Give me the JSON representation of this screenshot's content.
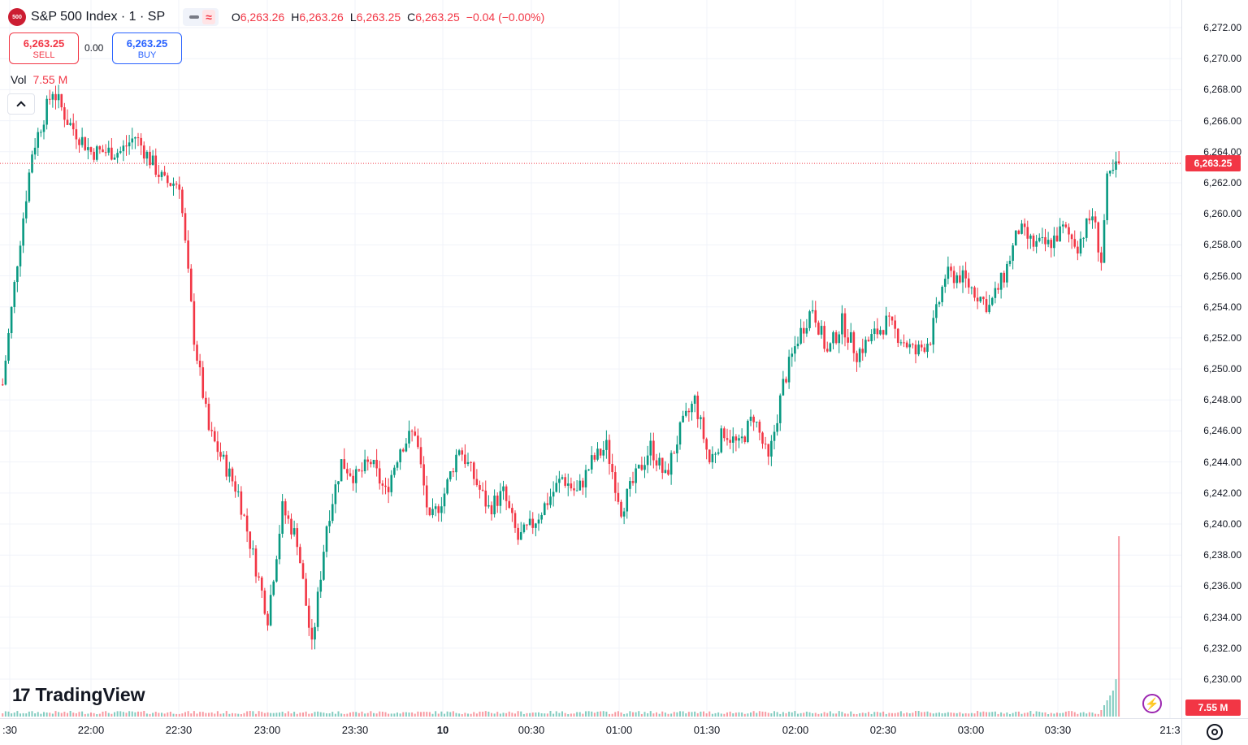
{
  "legend": {
    "logo_text": "500",
    "symbol_title": "S&P 500 Index · 1 · SP",
    "open_label": "O",
    "open_value": "6,263.26",
    "high_label": "H",
    "high_value": "6,263.26",
    "low_label": "L",
    "low_value": "6,263.25",
    "close_label": "C",
    "close_value": "6,263.25",
    "change": "−0.04 (−0.00%)",
    "approx_symbol": "≈"
  },
  "trade": {
    "sell_price": "6,263.25",
    "sell_label": "SELL",
    "spread": "0.00",
    "buy_price": "6,263.25",
    "buy_label": "BUY"
  },
  "volume": {
    "name": "Vol",
    "value": "7.55 M",
    "axis_tag": "7.55 M"
  },
  "branding": {
    "logo_mark": "17",
    "logo_text": "TradingView"
  },
  "price_axis": {
    "ticks": [
      "6,272.00",
      "6,270.00",
      "6,268.00",
      "6,266.00",
      "6,264.00",
      "6,262.00",
      "6,260.00",
      "6,258.00",
      "6,256.00",
      "6,254.00",
      "6,252.00",
      "6,250.00",
      "6,248.00",
      "6,246.00",
      "6,244.00",
      "6,242.00",
      "6,240.00",
      "6,238.00",
      "6,236.00",
      "6,234.00",
      "6,232.00",
      "6,230.00"
    ],
    "last_price_tag": "6,263.25"
  },
  "time_axis": {
    "labels": [
      ":30",
      "22:00",
      "22:30",
      "23:00",
      "23:30",
      "10",
      "00:30",
      "01:00",
      "01:30",
      "02:00",
      "02:30",
      "03:00",
      "03:30",
      "21:3"
    ]
  },
  "colors": {
    "up": "#089981",
    "down": "#f23645",
    "accent": "#2962ff"
  },
  "chart_data": {
    "type": "candlestick",
    "title": "S&P 500 Index · 1 · SP",
    "y_range": [
      6229,
      6273
    ],
    "last_price": 6263.25,
    "grid": true,
    "anchors": [
      [
        "21:30",
        6249
      ],
      [
        "21:35",
        6257
      ],
      [
        "21:40",
        6264
      ],
      [
        "21:47",
        6268
      ],
      [
        "21:52",
        6266
      ],
      [
        "22:00",
        6264
      ],
      [
        "22:10",
        6264
      ],
      [
        "22:15",
        6265
      ],
      [
        "22:25",
        6262
      ],
      [
        "22:30",
        6262
      ],
      [
        "22:35",
        6252
      ],
      [
        "22:40",
        6246
      ],
      [
        "22:45",
        6244
      ],
      [
        "22:50",
        6242
      ],
      [
        "22:55",
        6238
      ],
      [
        "23:00",
        6234
      ],
      [
        "23:05",
        6241
      ],
      [
        "23:10",
        6239
      ],
      [
        "23:15",
        6232
      ],
      [
        "23:20",
        6240
      ],
      [
        "23:25",
        6244
      ],
      [
        "23:30",
        6243
      ],
      [
        "23:35",
        6244
      ],
      [
        "23:40",
        6242
      ],
      [
        "23:45",
        6245
      ],
      [
        "23:50",
        6246
      ],
      [
        "23:55",
        6240
      ],
      [
        "00:00",
        6242
      ],
      [
        "00:05",
        6245
      ],
      [
        "00:10",
        6243
      ],
      [
        "00:15",
        6241
      ],
      [
        "00:20",
        6242
      ],
      [
        "00:25",
        6239
      ],
      [
        "00:30",
        6240
      ],
      [
        "00:40",
        6243
      ],
      [
        "00:45",
        6242
      ],
      [
        "00:50",
        6244
      ],
      [
        "00:55",
        6245
      ],
      [
        "01:00",
        6241
      ],
      [
        "01:05",
        6243
      ],
      [
        "01:10",
        6245
      ],
      [
        "01:15",
        6243
      ],
      [
        "01:20",
        6246
      ],
      [
        "01:25",
        6248
      ],
      [
        "01:30",
        6244
      ],
      [
        "01:35",
        6246
      ],
      [
        "01:40",
        6245
      ],
      [
        "01:45",
        6247
      ],
      [
        "01:50",
        6244
      ],
      [
        "01:55",
        6249
      ],
      [
        "02:00",
        6252
      ],
      [
        "02:05",
        6254
      ],
      [
        "02:10",
        6251
      ],
      [
        "02:15",
        6253
      ],
      [
        "02:20",
        6251
      ],
      [
        "02:25",
        6252
      ],
      [
        "02:30",
        6253
      ],
      [
        "02:35",
        6252
      ],
      [
        "02:40",
        6251
      ],
      [
        "02:45",
        6252
      ],
      [
        "02:50",
        6256
      ],
      [
        "02:55",
        6256
      ],
      [
        "03:00",
        6255
      ],
      [
        "03:05",
        6254
      ],
      [
        "03:10",
        6256
      ],
      [
        "03:15",
        6259
      ],
      [
        "03:20",
        6258
      ],
      [
        "03:25",
        6258
      ],
      [
        "03:30",
        6259
      ],
      [
        "03:35",
        6258
      ],
      [
        "03:40",
        6260
      ],
      [
        "03:43",
        6257
      ],
      [
        "03:45",
        6262
      ],
      [
        "03:49",
        6263.25
      ]
    ],
    "volume_spike": {
      "time": "03:49",
      "value": "7.55 M"
    }
  }
}
